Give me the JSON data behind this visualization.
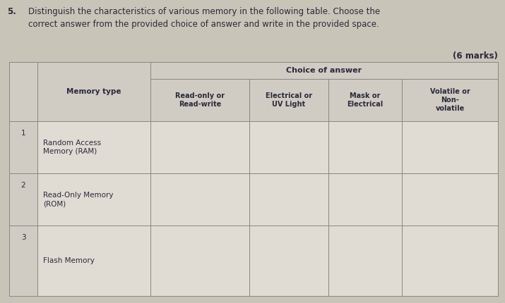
{
  "question_number": "5.",
  "question_text": "Distinguish the characteristics of various memory in the following table. Choose the\ncorrect answer from the provided choice of answer and write in the provided space.",
  "marks": "(6 marks)",
  "bg_color": "#c8c4b8",
  "cell_bg": "#e0dcd4",
  "header_bg": "#d0ccc4",
  "border_color": "#888880",
  "text_color": "#2a2a3a",
  "choice_header": "Choice of answer",
  "col_headers": [
    "Memory type",
    "Read-only or\nRead-write",
    "Electrical or\nUV Light",
    "Mask or\nElectrical",
    "Volatile or\nNon-\nvolatile"
  ],
  "row_numbers": [
    "1",
    "2",
    "3"
  ],
  "row_labels": [
    "Random Access\nMemory (RAM)",
    "Read-Only Memory\n(ROM)",
    "Flash Memory"
  ],
  "font_size_q": 8.5,
  "font_size_hdr": 7.5,
  "font_size_cell": 7.5
}
